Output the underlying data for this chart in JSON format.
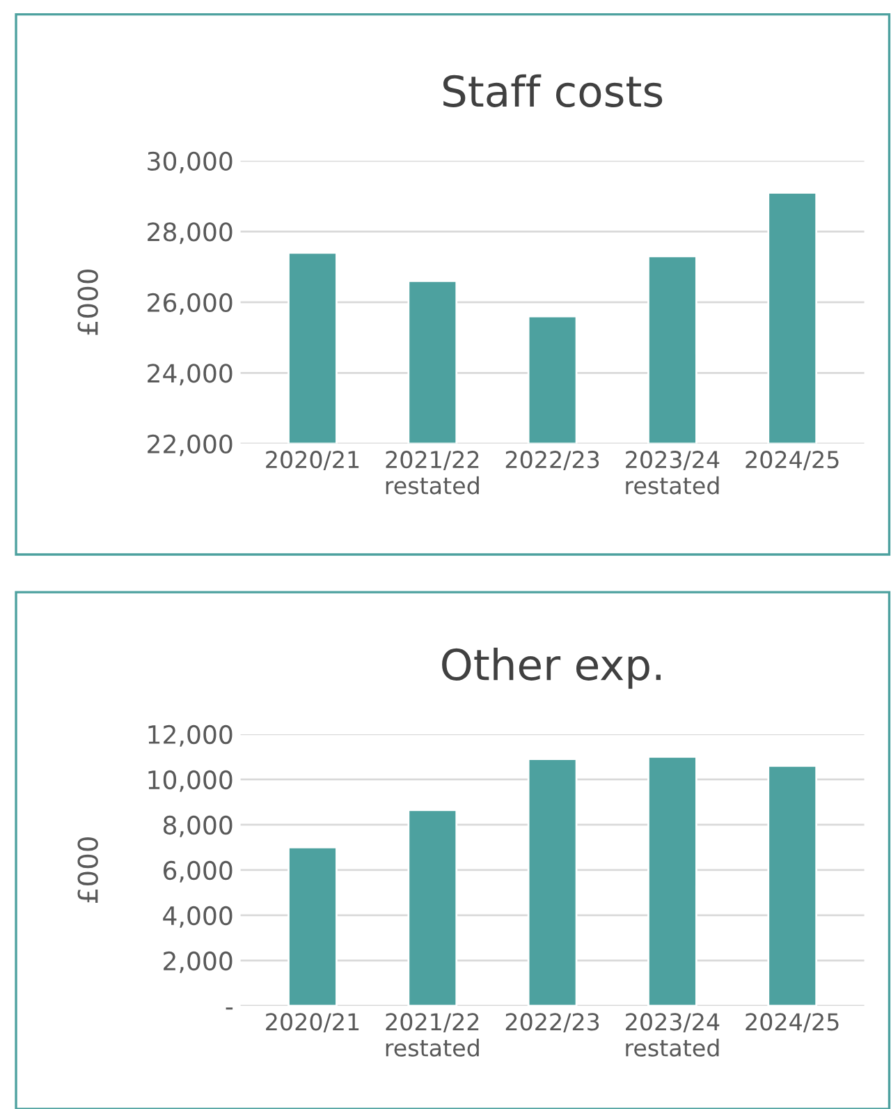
{
  "chart_data": [
    {
      "type": "bar",
      "title": "Staff costs",
      "ylabel": "£000",
      "categories": [
        "2020/21",
        "2021/22\nrestated",
        "2022/23",
        "2023/24\nrestated",
        "2024/25"
      ],
      "values": [
        27400,
        26600,
        25600,
        27300,
        29100
      ],
      "color": "#4da19f",
      "ylim": [
        22000,
        30000
      ],
      "yticks": [
        {
          "value": 22000,
          "label": "22,000"
        },
        {
          "value": 24000,
          "label": "24,000"
        },
        {
          "value": 26000,
          "label": "26,000"
        },
        {
          "value": 28000,
          "label": "28,000"
        },
        {
          "value": 30000,
          "label": "30,000"
        }
      ],
      "grid": "y",
      "legend": false
    },
    {
      "type": "bar",
      "title": "Other exp.",
      "ylabel": "£000",
      "categories": [
        "2020/21",
        "2021/22\nrestated",
        "2022/23",
        "2023/24\nrestated",
        "2024/25"
      ],
      "values": [
        7000,
        8650,
        10900,
        11000,
        10600
      ],
      "color": "#4da19f",
      "ylim": [
        0,
        12000
      ],
      "yticks": [
        {
          "value": 0,
          "label": "-"
        },
        {
          "value": 2000,
          "label": "2,000"
        },
        {
          "value": 4000,
          "label": "4,000"
        },
        {
          "value": 6000,
          "label": "6,000"
        },
        {
          "value": 8000,
          "label": "8,000"
        },
        {
          "value": 10000,
          "label": "10,000"
        },
        {
          "value": 12000,
          "label": "12,000"
        }
      ],
      "grid": "y",
      "legend": false
    }
  ]
}
